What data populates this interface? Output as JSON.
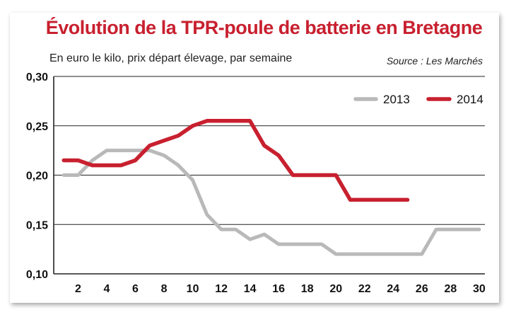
{
  "chart_data": {
    "type": "line",
    "title": "Évolution de la TPR-poule de batterie en Bretagne",
    "subtitle": "En euro le kilo, prix départ élevage, par semaine",
    "source": "Source : Les Marchés",
    "x": [
      1,
      2,
      3,
      4,
      5,
      6,
      7,
      8,
      9,
      10,
      11,
      12,
      13,
      14,
      15,
      16,
      17,
      18,
      19,
      20,
      21,
      22,
      23,
      24,
      25,
      26,
      27,
      28,
      29,
      30
    ],
    "xticks": [
      2,
      4,
      6,
      8,
      10,
      12,
      14,
      16,
      18,
      20,
      22,
      24,
      26,
      28,
      30
    ],
    "xlim": [
      0.3,
      30.4
    ],
    "ylim": [
      0.1,
      0.3
    ],
    "yticks": [
      "0,10",
      "0,15",
      "0,20",
      "0,25",
      "0,30"
    ],
    "ytick_values": [
      0.1,
      0.15,
      0.2,
      0.25,
      0.3
    ],
    "grid": "horizontal",
    "legend_position": "top-right",
    "series": [
      {
        "name": "2013",
        "color": "#b9b9b9",
        "x": [
          1,
          2,
          3,
          4,
          5,
          6,
          7,
          8,
          9,
          10,
          11,
          12,
          13,
          14,
          15,
          16,
          17,
          18,
          19,
          20,
          21,
          22,
          23,
          24,
          25,
          26,
          27,
          28,
          29,
          30
        ],
        "values": [
          0.2,
          0.2,
          0.215,
          0.225,
          0.225,
          0.225,
          0.225,
          0.22,
          0.21,
          0.195,
          0.16,
          0.145,
          0.145,
          0.135,
          0.14,
          0.13,
          0.13,
          0.13,
          0.13,
          0.12,
          0.12,
          0.12,
          0.12,
          0.12,
          0.12,
          0.12,
          0.145,
          0.145,
          0.145,
          0.145
        ]
      },
      {
        "name": "2014",
        "color": "#c8202f",
        "x": [
          1,
          2,
          3,
          4,
          5,
          6,
          7,
          8,
          9,
          10,
          11,
          12,
          13,
          14,
          15,
          16,
          17,
          18,
          19,
          20,
          21,
          22,
          23,
          24,
          25
        ],
        "values": [
          0.215,
          0.215,
          0.21,
          0.21,
          0.21,
          0.215,
          0.23,
          0.235,
          0.24,
          0.25,
          0.255,
          0.255,
          0.255,
          0.255,
          0.23,
          0.22,
          0.2,
          0.2,
          0.2,
          0.2,
          0.175,
          0.175,
          0.175,
          0.175,
          0.175
        ]
      }
    ]
  }
}
